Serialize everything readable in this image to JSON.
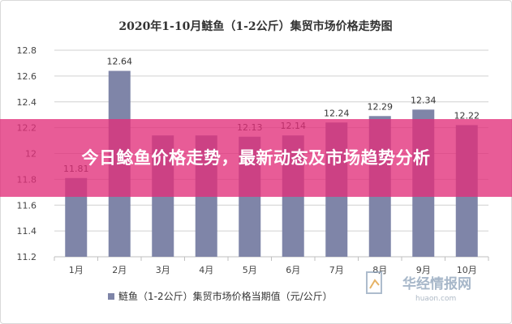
{
  "overlay": {
    "headline": "今日鲶鱼价格走势，最新动态及市场趋势分析"
  },
  "watermark": {
    "brand": "华经情报网",
    "url": "huaon.com"
  },
  "colors": {
    "bar": "#7f85a8",
    "banner": "#e22e7a"
  },
  "chart_data": {
    "type": "bar",
    "title": "2020年1-10月鲢鱼（1-2公斤）集贸市场价格走势图",
    "categories": [
      "1月",
      "2月",
      "3月",
      "4月",
      "5月",
      "6月",
      "7月",
      "8月",
      "9月",
      "10月"
    ],
    "series": [
      {
        "name": "鲢鱼（1-2公斤）集贸市场价格当期值（元/公斤）",
        "values": [
          11.81,
          12.64,
          12.14,
          12.14,
          12.13,
          12.14,
          12.24,
          12.29,
          12.34,
          12.22
        ]
      }
    ],
    "data_labels": [
      "11.81",
      "12.64",
      "",
      "",
      "12.13",
      "12.14",
      "12.24",
      "12.29",
      "12.34",
      "12.22"
    ],
    "ylim": [
      11.2,
      12.8
    ],
    "yticks": [
      "11.2",
      "11.4",
      "11.6",
      "11.8",
      "12",
      "12.2",
      "12.4",
      "12.6",
      "12.8"
    ],
    "grid": true,
    "legend_position": "bottom"
  }
}
